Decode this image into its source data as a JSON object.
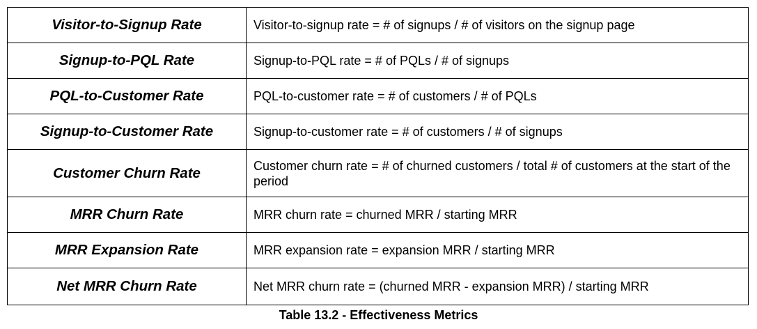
{
  "table": {
    "rows": [
      {
        "metric": "Visitor-to-Signup Rate",
        "definition": "Visitor-to-signup rate = # of signups / # of visitors on the signup page"
      },
      {
        "metric": "Signup-to-PQL Rate",
        "definition": "Signup-to-PQL rate = # of PQLs / # of signups"
      },
      {
        "metric": "PQL-to-Customer Rate",
        "definition": "PQL-to-customer rate = # of customers / # of PQLs"
      },
      {
        "metric": "Signup-to-Customer Rate",
        "definition": "Signup-to-customer rate = # of customers / # of signups"
      },
      {
        "metric": "Customer Churn Rate",
        "definition": "Customer churn rate = # of churned customers / total # of customers at the start of the period"
      },
      {
        "metric": "MRR Churn Rate",
        "definition": "MRR churn rate = churned MRR / starting MRR"
      },
      {
        "metric": "MRR Expansion Rate",
        "definition": "MRR expansion rate = expansion MRR / starting MRR"
      },
      {
        "metric": "Net MRR Churn Rate",
        "definition": "Net MRR churn rate = (churned MRR - expansion MRR) / starting MRR"
      }
    ],
    "caption": "Table 13.2 - Effectiveness Metrics"
  }
}
